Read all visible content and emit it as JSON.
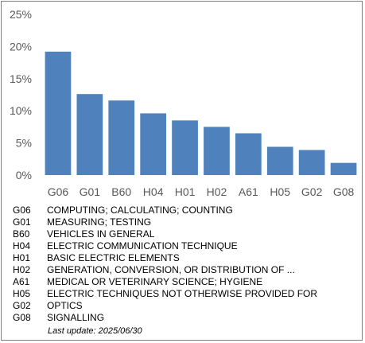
{
  "chart_data": {
    "type": "bar",
    "categories": [
      "G06",
      "G01",
      "B60",
      "H04",
      "H01",
      "H02",
      "A61",
      "H05",
      "G02",
      "G08"
    ],
    "values": [
      19.2,
      12.6,
      11.6,
      9.6,
      8.5,
      7.5,
      6.5,
      4.4,
      3.9,
      1.9
    ],
    "ylim": [
      0,
      25
    ],
    "yticks": [
      "0%",
      "5%",
      "10%",
      "15%",
      "20%",
      "25%"
    ],
    "ytick_values": [
      0,
      5,
      10,
      15,
      20,
      25
    ],
    "bar_color": "#4f81bd",
    "grid": false
  },
  "legend": [
    {
      "code": "G06",
      "text": "COMPUTING; CALCULATING; COUNTING"
    },
    {
      "code": "G01",
      "text": "MEASURING; TESTING"
    },
    {
      "code": "B60",
      "text": "VEHICLES IN GENERAL"
    },
    {
      "code": "H04",
      "text": "ELECTRIC COMMUNICATION TECHNIQUE"
    },
    {
      "code": "H01",
      "text": "BASIC ELECTRIC ELEMENTS"
    },
    {
      "code": "H02",
      "text": "GENERATION, CONVERSION, OR DISTRIBUTION OF ..."
    },
    {
      "code": "A61",
      "text": "MEDICAL OR VETERINARY SCIENCE; HYGIENE"
    },
    {
      "code": "H05",
      "text": "ELECTRIC TECHNIQUES NOT OTHERWISE PROVIDED FOR"
    },
    {
      "code": "G02",
      "text": "OPTICS"
    },
    {
      "code": "G08",
      "text": "SIGNALLING"
    }
  ],
  "footer": {
    "last_update": "Last update:  2025/06/30"
  }
}
